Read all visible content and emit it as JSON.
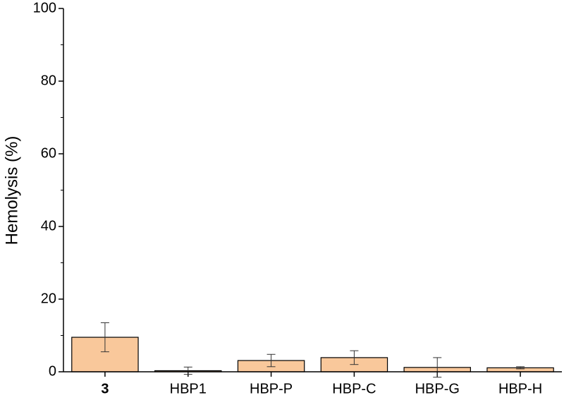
{
  "chart_data": {
    "type": "bar",
    "y_label": "Hemolysis (%)",
    "categories": [
      "3",
      "HBP1",
      "HBP-P",
      "HBP-C",
      "HBP-G",
      "HBP-H"
    ],
    "values": [
      9.5,
      0.3,
      3.1,
      3.9,
      1.2,
      1.1
    ],
    "errors": [
      4.0,
      1.0,
      1.7,
      1.9,
      2.7,
      0.3
    ],
    "color": "#f9c89b",
    "ylim": [
      0,
      100
    ],
    "yticks": [
      0,
      20,
      40,
      60,
      80,
      100
    ],
    "grid": false
  }
}
